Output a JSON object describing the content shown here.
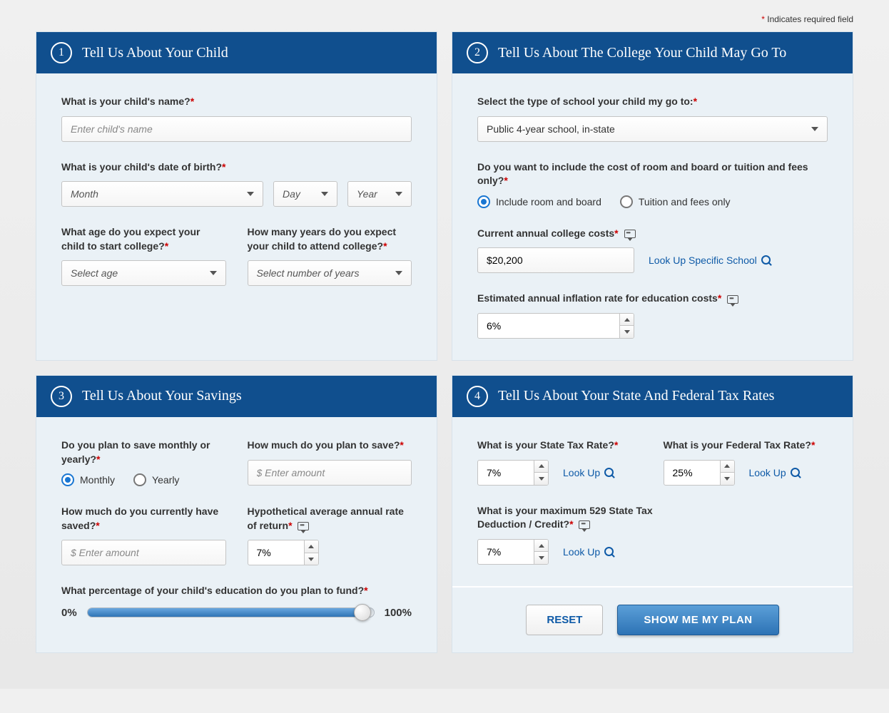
{
  "requiredNote": "Indicates required field",
  "panel1": {
    "number": "1",
    "title": "Tell Us About Your Child",
    "nameLabel": "What is your child's name?",
    "namePlaceholder": "Enter child's name",
    "dobLabel": "What is your child's date of birth?",
    "monthPlaceholder": "Month",
    "dayPlaceholder": "Day",
    "yearPlaceholder": "Year",
    "startAgeLabel": "What age do you expect your child to start college?",
    "startAgePlaceholder": "Select age",
    "attendYearsLabel": "How many years do you expect your child to attend college?",
    "attendYearsPlaceholder": "Select number of years"
  },
  "panel2": {
    "number": "2",
    "title": "Tell Us About The College Your Child May Go To",
    "schoolTypeLabel": "Select the type of school your child my go to:",
    "schoolTypeValue": "Public 4-year school, in-state",
    "costIncludeLabel": "Do you want to include the cost of room and board or tuition and fees only?",
    "radioRoomBoard": "Include room and board",
    "radioTuitionOnly": "Tuition and fees only",
    "costLabel": "Current annual college costs",
    "costValue": "$20,200",
    "lookupSchool": "Look Up Specific School",
    "inflationLabel": "Estimated annual inflation rate for education costs",
    "inflationValue": "6%"
  },
  "panel3": {
    "number": "3",
    "title": "Tell Us About Your Savings",
    "saveFreqLabel": "Do you plan to save monthly or yearly?",
    "radioMonthly": "Monthly",
    "radioYearly": "Yearly",
    "saveAmountLabel": "How much do you plan to save?",
    "amountPlaceholder": "$ Enter amount",
    "currentSavedLabel": "How much do you currently have saved?",
    "rorLabel": "Hypothetical average annual rate of return",
    "rorValue": "7%",
    "fundPctLabel": "What percentage of your child's education do you plan to fund?",
    "sliderMin": "0%",
    "sliderMax": "100%",
    "sliderValue": 96
  },
  "panel4": {
    "number": "4",
    "title": "Tell Us About Your State And Federal Tax Rates",
    "stateTaxLabel": "What is your State Tax Rate?",
    "stateTaxValue": "7%",
    "federalTaxLabel": "What is your Federal Tax Rate?",
    "federalTaxValue": "25%",
    "deductionLabel": "What is your maximum 529 State Tax Deduction / Credit?",
    "deductionValue": "7%",
    "lookUp": "Look Up",
    "resetBtn": "RESET",
    "submitBtn": "SHOW ME MY PLAN"
  }
}
